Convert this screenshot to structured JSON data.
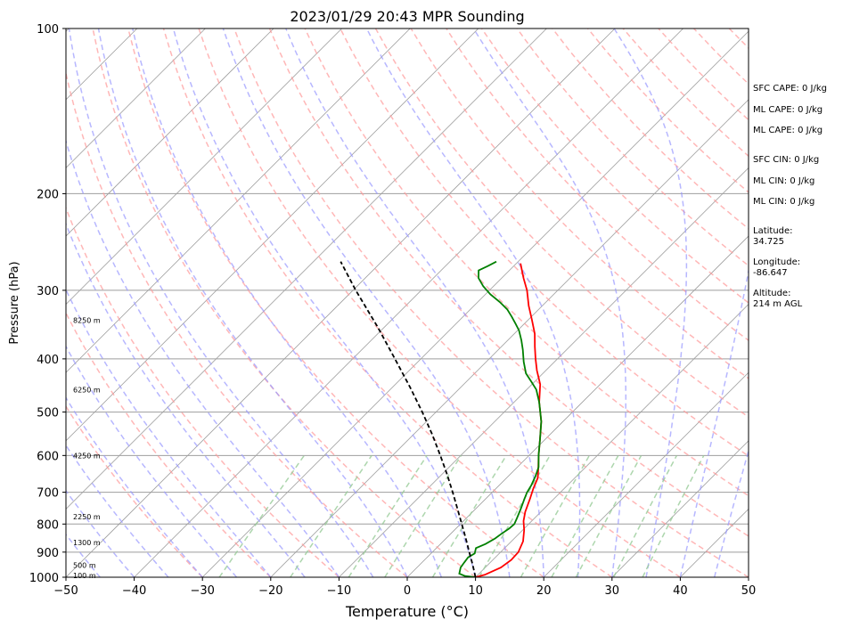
{
  "chart_data": {
    "type": "line",
    "title": "2023/01/29 20:43 MPR Sounding",
    "xlabel": "Temperature (°C)",
    "ylabel": "Pressure (hPa)",
    "xlim": [
      -50,
      50
    ],
    "ylim": [
      1000,
      100
    ],
    "y_scale": "log",
    "x_ticks": [
      "−50",
      "−40",
      "−30",
      "−20",
      "−10",
      "0",
      "10",
      "20",
      "30",
      "40",
      "50"
    ],
    "y_ticks": [
      {
        "p": 100,
        "label": "100"
      },
      {
        "p": 200,
        "label": "200"
      },
      {
        "p": 300,
        "label": "300"
      },
      {
        "p": 400,
        "label": "400"
      },
      {
        "p": 500,
        "label": "500"
      },
      {
        "p": 600,
        "label": "600"
      },
      {
        "p": 700,
        "label": "700"
      },
      {
        "p": 800,
        "label": "800"
      },
      {
        "p": 900,
        "label": "900"
      },
      {
        "p": 1000,
        "label": "1000"
      }
    ],
    "height_labels": [
      {
        "p": 340,
        "label": "8250 m"
      },
      {
        "p": 455,
        "label": "6250 m"
      },
      {
        "p": 600,
        "label": "4250 m"
      },
      {
        "p": 775,
        "label": "2250 m"
      },
      {
        "p": 865,
        "label": "1300 m"
      },
      {
        "p": 950,
        "label": "500 m"
      },
      {
        "p": 992,
        "label": "100 m"
      }
    ],
    "series": [
      {
        "color": "#ff0000",
        "points": [
          {
            "p": 1000,
            "t": 10.0
          },
          {
            "p": 990,
            "t": 11.0
          },
          {
            "p": 960,
            "t": 12.3
          },
          {
            "p": 930,
            "t": 12.7
          },
          {
            "p": 900,
            "t": 12.6
          },
          {
            "p": 860,
            "t": 11.7
          },
          {
            "p": 820,
            "t": 10.2
          },
          {
            "p": 790,
            "t": 8.8
          },
          {
            "p": 760,
            "t": 7.7
          },
          {
            "p": 720,
            "t": 6.5
          },
          {
            "p": 690,
            "t": 5.5
          },
          {
            "p": 660,
            "t": 4.6
          },
          {
            "p": 640,
            "t": 3.6
          },
          {
            "p": 600,
            "t": 1.4
          },
          {
            "p": 560,
            "t": -0.8
          },
          {
            "p": 520,
            "t": -3.2
          },
          {
            "p": 480,
            "t": -6.3
          },
          {
            "p": 445,
            "t": -8.8
          },
          {
            "p": 420,
            "t": -11.3
          },
          {
            "p": 400,
            "t": -13.2
          },
          {
            "p": 380,
            "t": -15.1
          },
          {
            "p": 360,
            "t": -17.0
          },
          {
            "p": 340,
            "t": -19.4
          },
          {
            "p": 320,
            "t": -22.0
          },
          {
            "p": 300,
            "t": -24.5
          },
          {
            "p": 285,
            "t": -26.8
          },
          {
            "p": 268,
            "t": -29.4
          }
        ]
      },
      {
        "color": "#008000",
        "points": [
          {
            "p": 1000,
            "t": 10.0
          },
          {
            "p": 995,
            "t": 8.3
          },
          {
            "p": 985,
            "t": 7.1
          },
          {
            "p": 960,
            "t": 6.4
          },
          {
            "p": 940,
            "t": 6.2
          },
          {
            "p": 920,
            "t": 6.0
          },
          {
            "p": 905,
            "t": 6.4
          },
          {
            "p": 885,
            "t": 5.8
          },
          {
            "p": 870,
            "t": 6.6
          },
          {
            "p": 850,
            "t": 7.2
          },
          {
            "p": 835,
            "t": 7.4
          },
          {
            "p": 815,
            "t": 7.8
          },
          {
            "p": 800,
            "t": 7.9
          },
          {
            "p": 780,
            "t": 7.4
          },
          {
            "p": 750,
            "t": 6.6
          },
          {
            "p": 720,
            "t": 5.7
          },
          {
            "p": 700,
            "t": 5.1
          },
          {
            "p": 680,
            "t": 4.7
          },
          {
            "p": 655,
            "t": 4.0
          },
          {
            "p": 630,
            "t": 3.1
          },
          {
            "p": 600,
            "t": 1.4
          },
          {
            "p": 560,
            "t": -0.8
          },
          {
            "p": 520,
            "t": -3.2
          },
          {
            "p": 480,
            "t": -6.3
          },
          {
            "p": 455,
            "t": -8.6
          },
          {
            "p": 440,
            "t": -10.5
          },
          {
            "p": 425,
            "t": -12.5
          },
          {
            "p": 405,
            "t": -14.5
          },
          {
            "p": 385,
            "t": -16.4
          },
          {
            "p": 370,
            "t": -18.0
          },
          {
            "p": 355,
            "t": -19.8
          },
          {
            "p": 345,
            "t": -21.3
          },
          {
            "p": 335,
            "t": -22.9
          },
          {
            "p": 325,
            "t": -24.6
          },
          {
            "p": 315,
            "t": -26.8
          },
          {
            "p": 305,
            "t": -29.3
          },
          {
            "p": 295,
            "t": -31.5
          },
          {
            "p": 285,
            "t": -33.4
          },
          {
            "p": 276,
            "t": -34.5
          },
          {
            "p": 271,
            "t": -33.8
          },
          {
            "p": 266,
            "t": -33.2
          }
        ]
      },
      {
        "color": "#000000",
        "dashed": true,
        "points": [
          {
            "p": 1000,
            "t": 10.0
          },
          {
            "p": 950,
            "t": 7.8
          },
          {
            "p": 900,
            "t": 5.4
          },
          {
            "p": 850,
            "t": 2.9
          },
          {
            "p": 800,
            "t": 0.2
          },
          {
            "p": 750,
            "t": -2.7
          },
          {
            "p": 700,
            "t": -5.8
          },
          {
            "p": 650,
            "t": -9.2
          },
          {
            "p": 600,
            "t": -13.0
          },
          {
            "p": 550,
            "t": -17.2
          },
          {
            "p": 500,
            "t": -22.0
          },
          {
            "p": 450,
            "t": -27.5
          },
          {
            "p": 400,
            "t": -33.8
          },
          {
            "p": 350,
            "t": -41.0
          },
          {
            "p": 300,
            "t": -49.6
          },
          {
            "p": 266,
            "t": -56.0
          }
        ]
      }
    ]
  },
  "indices": {
    "sfc_cape": "SFC CAPE: 0 J/kg",
    "ml_cape_1": "ML CAPE: 0 J/kg",
    "ml_cape_2": "ML CAPE: 0 J/kg",
    "sfc_cin": "SFC CIN: 0 J/kg",
    "ml_cin_1": "ML CIN: 0 J/kg",
    "ml_cin_2": "ML CIN: 0 J/kg",
    "latitude": "Latitude:\n34.725",
    "longitude": "Longitude:\n-86.647",
    "altitude": "Altitude:\n214 m AGL"
  },
  "colors": {
    "dry_adiabat": "#ff9999",
    "moist_adiabat": "#9999ff",
    "mixing_ratio": "#99cc99",
    "isotherm": "#9e9e9e"
  }
}
